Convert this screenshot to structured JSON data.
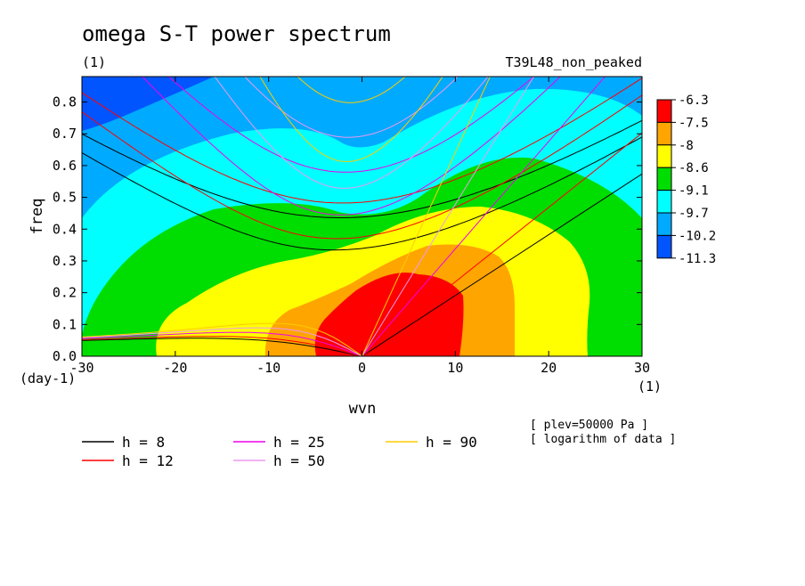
{
  "chart_data": {
    "type": "heatmap",
    "title": "omega S-T power spectrum",
    "subtitle_left": "(1)",
    "subtitle_right": "T39L48_non_peaked",
    "xlabel": "wvn",
    "ylabel": "freq",
    "x_unit_label": "(1)",
    "y_unit_label": "(day-1)",
    "xlim": [
      -30,
      30
    ],
    "ylim": [
      0,
      0.88
    ],
    "x_ticks": [
      -30,
      -20,
      -10,
      0,
      10,
      20,
      30
    ],
    "x_tick_labels": [
      "-30",
      "-20",
      "-10",
      "0",
      "10",
      "20",
      "30"
    ],
    "y_ticks": [
      0,
      0.1,
      0.2,
      0.3,
      0.4,
      0.5,
      0.6,
      0.7,
      0.8
    ],
    "y_tick_labels": [
      "0.0",
      "0.1",
      "0.2",
      "0.3",
      "0.4",
      "0.5",
      "0.6",
      "0.7",
      "0.8"
    ],
    "color_levels": [
      {
        "label": "-6.3",
        "color": "#ff0000"
      },
      {
        "label": "-7.5",
        "color": "#ffa500"
      },
      {
        "label": "-8",
        "color": "#ffff00"
      },
      {
        "label": "-8.6",
        "color": "#00dd00"
      },
      {
        "label": "-9.1",
        "color": "#00ffff"
      },
      {
        "label": "-9.7",
        "color": "#00aaff"
      },
      {
        "label": "-10.2",
        "color": "#0055ff"
      },
      {
        "label": "-11.3",
        "color": ""
      }
    ],
    "dispersion_curves": [
      {
        "name": "h =  8",
        "h": 8,
        "color": "#000000"
      },
      {
        "name": "h = 12",
        "h": 12,
        "color": "#ff0000"
      },
      {
        "name": "h = 25",
        "h": 25,
        "color": "#ee00ee"
      },
      {
        "name": "h = 50",
        "h": 50,
        "color": "#ee99ee"
      },
      {
        "name": "h = 90",
        "h": 90,
        "color": "#ffcc00"
      }
    ],
    "notes": [
      "[ plev=50000 Pa ]",
      "[ logarithm of data ]"
    ]
  }
}
